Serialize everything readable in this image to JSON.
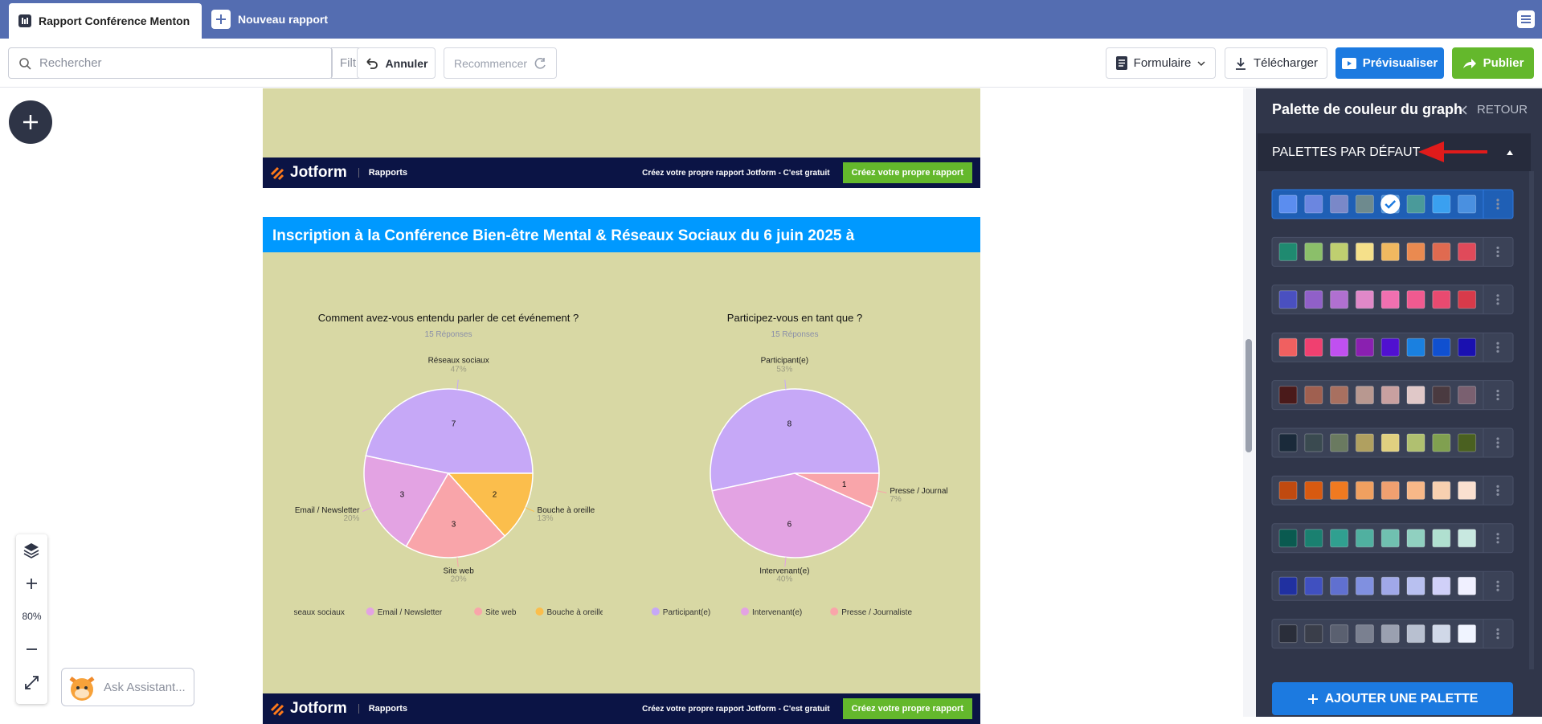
{
  "tabs": {
    "active": "Rapport Conférence Menton",
    "new": "Nouveau rapport"
  },
  "toolbar": {
    "search": "Rechercher",
    "filter": "Filtre",
    "undo": "Annuler",
    "redo": "Recommencer",
    "form": "Formulaire",
    "download": "Télécharger",
    "preview": "Prévisualiser",
    "publish": "Publier"
  },
  "report": {
    "footer": {
      "brand": "Jotform",
      "product": "Rapports",
      "promo": "Créez votre propre rapport Jotform - C'est gratuit",
      "cta": "Créez votre propre rapport"
    },
    "page_title": "Inscription à la Conférence Bien-être Mental & Réseaux Sociaux du 6 juin 2025 à",
    "charts": [
      {
        "type": "pie",
        "title": "Comment avez-vous entendu parler de cet événement ?",
        "subtitle": "15 Réponses",
        "categories": [
          "Réseaux sociaux",
          "Email / Newsletter",
          "Site web",
          "Bouche à oreille"
        ],
        "values": [
          7,
          3,
          3,
          2
        ],
        "value_labels": [
          "47%",
          "20%",
          "20%",
          "13%"
        ],
        "colors": [
          "#c6a8f7",
          "#e3a3e3",
          "#f9a5aa",
          "#fbbe4c"
        ]
      },
      {
        "type": "pie",
        "title": "Participez-vous en tant que ?",
        "subtitle": "15 Réponses",
        "categories": [
          "Participant(e)",
          "Intervenant(e)",
          "Presse / Journaliste"
        ],
        "values": [
          8,
          6,
          1
        ],
        "value_labels": [
          "53%",
          "40%",
          "7%"
        ],
        "colors": [
          "#c6a8f7",
          "#e3a3e3",
          "#f9a5aa"
        ]
      }
    ]
  },
  "zoom": {
    "level": "80%"
  },
  "assistant": "Ask Assistant...",
  "panel": {
    "title": "Palette de couleur du graph",
    "back": "RETOUR",
    "section": "PALETTES PAR DÉFAUT",
    "add": "AJOUTER UNE PALETTE",
    "selected_palette": 0,
    "selected_swatch": 4,
    "palettes": [
      [
        "#5b8def",
        "#6b86e0",
        "#7a88c8",
        "#6e8a8e",
        "#4a90d9",
        "#4a9a9a",
        "#3aa0f0",
        "#4a90e0"
      ],
      [
        "#1f8a70",
        "#8bbf6a",
        "#bfcf70",
        "#f5e08a",
        "#f0b860",
        "#ea8a50",
        "#e06a50",
        "#e04a5a"
      ],
      [
        "#4a50c0",
        "#9060c8",
        "#b070d0",
        "#e088c8",
        "#f070b0",
        "#f05a90",
        "#e84a70",
        "#d83a4a"
      ],
      [
        "#f06060",
        "#f04070",
        "#c050f0",
        "#8a20b0",
        "#5010d0",
        "#1a80e0",
        "#1050d0",
        "#1a10b0"
      ],
      [
        "#4a1a1a",
        "#a06050",
        "#a87060",
        "#b89890",
        "#c8a0a0",
        "#e0c8c8",
        "#4a3a40",
        "#7a6070"
      ],
      [
        "#1a2a3a",
        "#3a4a50",
        "#6a7a60",
        "#b0a060",
        "#e0d080",
        "#b0c070",
        "#80a050",
        "#4a6020"
      ],
      [
        "#c04a10",
        "#d85a10",
        "#f07a20",
        "#f0a060",
        "#f0a070",
        "#f8b888",
        "#f8d0b0",
        "#fae0d0"
      ],
      [
        "#0a5a50",
        "#1a8070",
        "#30a090",
        "#50b0a0",
        "#70c0b0",
        "#90d0c0",
        "#b0e0d0",
        "#c8e8e0"
      ],
      [
        "#2030a0",
        "#4050c0",
        "#6070d0",
        "#8090e0",
        "#a0a8e8",
        "#b8c0f0",
        "#d0d0f8",
        "#f0f0ff"
      ],
      [
        "#2a2e3a",
        "#3a3e4a",
        "#5a6070",
        "#7a8090",
        "#9aa0b0",
        "#b8c0d0",
        "#d0d8e8",
        "#f0f4ff"
      ]
    ]
  }
}
